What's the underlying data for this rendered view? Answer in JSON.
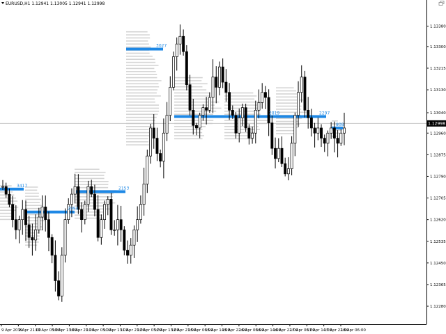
{
  "window": {
    "title": "EURUSD,H1 1.12941 1.13005 1.12941 1.12998",
    "menu_icon": "triangle-down-icon",
    "corner_icon": "restore-icon"
  },
  "current_price": "1.12998",
  "colors": {
    "poc_line": "#1e88e5",
    "profile_bar": "#d4d4d4",
    "candle_body": "#000000",
    "candle_hollow": "#ffffff",
    "axis": "#000000",
    "price_line": "#c8c8c8",
    "poc_label": "#1e88e5"
  },
  "chart_data": {
    "type": "candlestick",
    "symbol": "EURUSD",
    "timeframe": "H1",
    "ylim": [
      1.1222,
      1.1345
    ],
    "y_ticks": [
      "1.13380",
      "1.13300",
      "1.13215",
      "1.13130",
      "1.13040",
      "1.12960",
      "1.12875",
      "1.12790",
      "1.12705",
      "1.12620",
      "1.12535",
      "1.12450",
      "1.12365",
      "1.12280"
    ],
    "y_tick_values": [
      1.1338,
      1.133,
      1.13215,
      1.1313,
      1.1304,
      1.1296,
      1.12875,
      1.1279,
      1.12705,
      1.1262,
      1.12535,
      1.1245,
      1.12365,
      1.1228
    ],
    "x_ticks": [
      "9 Apr 2019",
      "9 Apr 21:00",
      "10 Apr 05:00",
      "10 Apr 13:00",
      "10 Apr 21:00",
      "11 Apr 05:00",
      "11 Apr 13:00",
      "11 Apr 21:00",
      "12 Apr 05:00",
      "12 Apr 13:00",
      "12 Apr 21:00",
      "15 Apr 06:00",
      "15 Apr 14:00",
      "15 Apr 22:00",
      "16 Apr 06:00",
      "16 Apr 14:00",
      "16 Apr 22:00",
      "17 Apr 06:00",
      "17 Apr 14:00",
      "17 Apr 22:00",
      "18 Apr 06:00"
    ],
    "poc_levels": [
      {
        "label": "3417",
        "price": 1.1274
      },
      {
        "label": "2994",
        "price": 1.1265
      },
      {
        "label": "2153",
        "price": 1.1273
      },
      {
        "label": "3027",
        "price": 1.1329
      },
      {
        "label": "2819",
        "price": 1.13025
      },
      {
        "label": "2297",
        "price": 1.13025
      },
      {
        "label": "808",
        "price": 1.1298
      }
    ],
    "candle_path": [
      1.1275,
      1.1272,
      1.1268,
      1.1262,
      1.1258,
      1.1262,
      1.1266,
      1.126,
      1.1255,
      1.1254,
      1.1258,
      1.1263,
      1.1267,
      1.1262,
      1.1255,
      1.1248,
      1.1238,
      1.1232,
      1.1248,
      1.1262,
      1.1268,
      1.1272,
      1.1275,
      1.1266,
      1.1262,
      1.1268,
      1.1275,
      1.1272,
      1.1266,
      1.1255,
      1.1262,
      1.1268,
      1.127,
      1.1258,
      1.1258,
      1.1262,
      1.1258,
      1.125,
      1.1248,
      1.1252,
      1.1258,
      1.1262,
      1.1268,
      1.1276,
      1.1287,
      1.1298,
      1.1294,
      1.1288,
      1.1285,
      1.1296,
      1.1303,
      1.1314,
      1.1326,
      1.1331,
      1.1334,
      1.1328,
      1.1315,
      1.1305,
      1.1299,
      1.1298,
      1.1303,
      1.1306,
      1.1305,
      1.131,
      1.1318,
      1.1314,
      1.1322,
      1.1316,
      1.1312,
      1.1305,
      1.1303,
      1.1296,
      1.1302,
      1.1306,
      1.1298,
      1.1294,
      1.1296,
      1.1305,
      1.1308,
      1.1312,
      1.131,
      1.13,
      1.129,
      1.1286,
      1.129,
      1.1284,
      1.128,
      1.1282,
      1.1292,
      1.1303,
      1.1312,
      1.1318,
      1.1305,
      1.1302,
      1.1298,
      1.1296,
      1.1298,
      1.1294,
      1.1292,
      1.1296,
      1.1298,
      1.1294,
      1.1292,
      1.1296,
      1.1298
    ]
  }
}
